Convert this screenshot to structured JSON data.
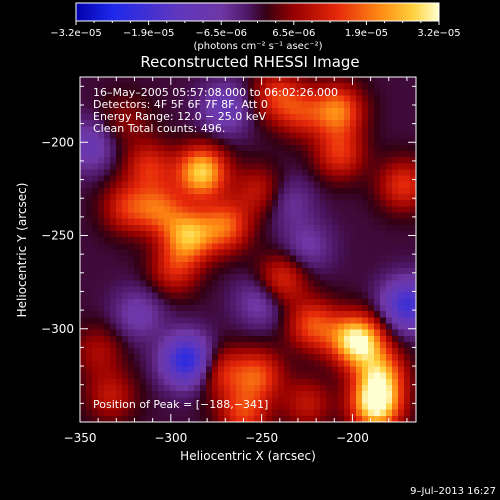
{
  "chart_data": {
    "type": "heatmap",
    "title": "Reconstructed RHESSI Image",
    "xlabel": "Heliocentric X (arcsec)",
    "ylabel": "Heliocentric Y (arcsec)",
    "xlim": [
      -350,
      -165
    ],
    "ylim": [
      -350,
      -165
    ],
    "x_ticks": [
      {
        "value": -350,
        "label": "−350"
      },
      {
        "value": -300,
        "label": "−300"
      },
      {
        "value": -250,
        "label": "−250"
      },
      {
        "value": -200,
        "label": "−200"
      }
    ],
    "y_ticks": [
      {
        "value": -300,
        "label": "−300"
      },
      {
        "value": -250,
        "label": "−250"
      },
      {
        "value": -200,
        "label": "−200"
      }
    ],
    "colorbar": {
      "min": -3.2e-05,
      "max": 3.2e-05,
      "tick_labels": [
        "−3.2e−05",
        "−1.9e−05",
        "−6.5e−06",
        "6.5e−06",
        "1.9e−05",
        "3.2e−05"
      ],
      "units": "(photons cm⁻² s⁻¹ asec⁻²)"
    },
    "annotations": {
      "time": "16–May–2005 05:57:08.000 to 06:02:26.000",
      "detectors": "Detectors: 4F 5F 6F 7F 8F, Att 0",
      "energy": "Energy Range: 12.0 − 25.0 keV",
      "clean": "Clean     Total counts: 496.",
      "peak": "Position of Peak = [−188,−341]"
    },
    "peak": [
      -188,
      -341
    ],
    "sources": [
      {
        "x": -312,
        "y": -213,
        "v": 1.3e-05
      },
      {
        "x": -306,
        "y": -236,
        "v": 1.6e-05
      },
      {
        "x": -283,
        "y": -216,
        "v": 2.8e-05
      },
      {
        "x": -290,
        "y": -250,
        "v": 2.4e-05
      },
      {
        "x": -270,
        "y": -245,
        "v": 1.8e-05
      },
      {
        "x": -252,
        "y": -226,
        "v": 1e-05
      },
      {
        "x": -324,
        "y": -235,
        "v": 1.3e-05
      },
      {
        "x": -298,
        "y": -268,
        "v": 1.2e-05
      },
      {
        "x": -242,
        "y": -175,
        "v": 1.3e-05
      },
      {
        "x": -228,
        "y": -184,
        "v": 1.2e-05
      },
      {
        "x": -208,
        "y": -183,
        "v": 2e-05
      },
      {
        "x": -207,
        "y": -206,
        "v": 1.4e-05
      },
      {
        "x": -172,
        "y": -223,
        "v": 1.4e-05
      },
      {
        "x": -239,
        "y": -274,
        "v": 1.4e-05
      },
      {
        "x": -222,
        "y": -298,
        "v": 1.6e-05
      },
      {
        "x": -203,
        "y": -305,
        "v": 1.2e-05
      },
      {
        "x": -195,
        "y": -307,
        "v": 2.4e-05
      },
      {
        "x": -185,
        "y": -325,
        "v": 2.2e-05
      },
      {
        "x": -187,
        "y": -341,
        "v": 3.2e-05
      },
      {
        "x": -252,
        "y": -325,
        "v": 1.6e-05
      },
      {
        "x": -225,
        "y": -340,
        "v": 1e-05
      },
      {
        "x": -340,
        "y": -312,
        "v": 8e-06
      },
      {
        "x": -333,
        "y": -336,
        "v": 1e-05
      },
      {
        "x": -260,
        "y": -345,
        "v": 1.5e-05
      },
      {
        "x": -272,
        "y": -323,
        "v": 1.2e-05
      },
      {
        "x": -325,
        "y": -188,
        "v": 6e-06
      },
      {
        "x": -291,
        "y": -317,
        "v": -2.4e-05
      },
      {
        "x": -170,
        "y": -287,
        "v": -2e-05
      },
      {
        "x": -250,
        "y": -285,
        "v": -9e-06
      },
      {
        "x": -270,
        "y": -182,
        "v": -1.1e-05
      },
      {
        "x": -225,
        "y": -256,
        "v": -7e-06
      },
      {
        "x": -345,
        "y": -202,
        "v": -1e-05
      },
      {
        "x": -318,
        "y": -292,
        "v": -8e-06
      },
      {
        "x": -235,
        "y": -232,
        "v": -6e-06
      }
    ]
  },
  "footer": {
    "timestamp": "9–Jul–2013 16:27"
  }
}
